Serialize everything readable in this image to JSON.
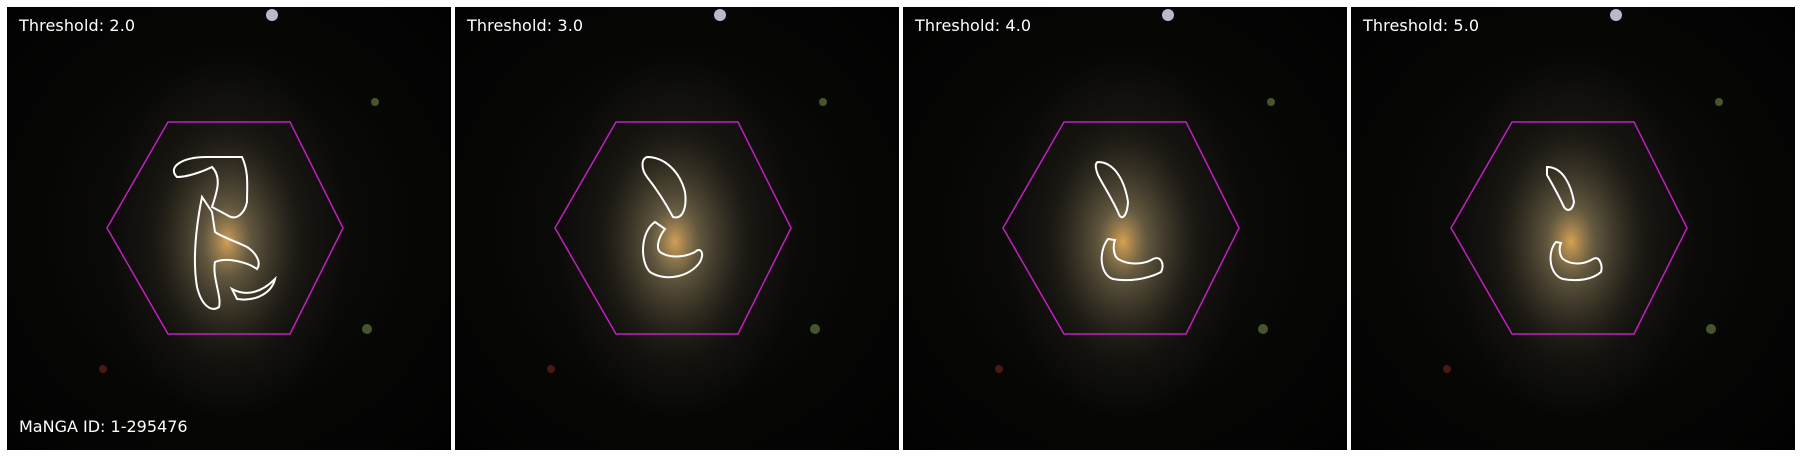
{
  "panels": [
    {
      "label": "Threshold: 2.0"
    },
    {
      "label": "Threshold: 3.0"
    },
    {
      "label": "Threshold: 4.0"
    },
    {
      "label": "Threshold: 5.0"
    }
  ],
  "galaxy_id_label": "MaNGA ID: 1-295476",
  "colors": {
    "hexagon": "#c020c0",
    "contour": "#ffffff",
    "background": "#050505"
  }
}
